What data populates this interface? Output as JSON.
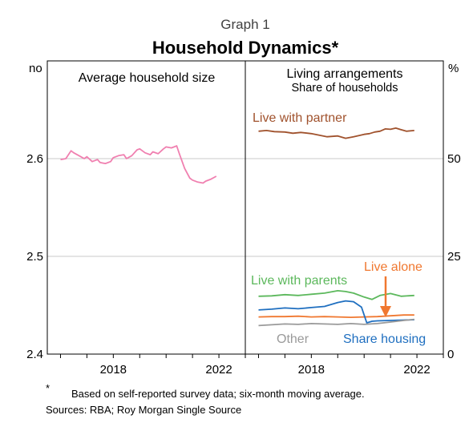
{
  "header": {
    "graph_label": "Graph 1",
    "title": "Household Dynamics*"
  },
  "footnotes": {
    "marker": "*",
    "note": "Based on self-reported survey data; six-month moving average.",
    "sources": "Sources: RBA; Roy Morgan Single Source"
  },
  "colors": {
    "live_with_partner": "#A0522D",
    "live_alone": "#F07830",
    "live_with_parents": "#5CB85C",
    "share_housing": "#1F6FC0",
    "other": "#9A9A9A",
    "household_size": "#F080B0",
    "gridline": "#C8C8C8",
    "arrow": "#F07830"
  },
  "chart_data": [
    {
      "type": "line",
      "panel": "left",
      "title": "Average household size",
      "ylabel": "no",
      "ylim": [
        2.4,
        2.7
      ],
      "yticks": [
        "2.6",
        "2.5",
        "2.4"
      ],
      "yticks_values": [
        2.6,
        2.5,
        2.4
      ],
      "xlim": [
        2015.5,
        2023.0
      ],
      "xticks": [
        "2018",
        "2022"
      ],
      "xticks_values": [
        2018,
        2022
      ],
      "grid": true,
      "series": [
        {
          "key": "household_size",
          "x": [
            2016.0,
            2016.2,
            2016.4,
            2016.5,
            2016.7,
            2016.9,
            2017.0,
            2017.2,
            2017.4,
            2017.5,
            2017.7,
            2017.9,
            2018.0,
            2018.2,
            2018.4,
            2018.5,
            2018.7,
            2018.9,
            2019.0,
            2019.2,
            2019.4,
            2019.5,
            2019.7,
            2019.9,
            2020.0,
            2020.2,
            2020.4,
            2020.5,
            2020.7,
            2020.9,
            2021.0,
            2021.2,
            2021.4,
            2021.5,
            2021.7,
            2021.9
          ],
          "values": [
            2.599,
            2.6,
            2.608,
            2.606,
            2.603,
            2.6,
            2.602,
            2.597,
            2.599,
            2.596,
            2.595,
            2.597,
            2.601,
            2.603,
            2.604,
            2.6,
            2.603,
            2.609,
            2.61,
            2.606,
            2.604,
            2.607,
            2.605,
            2.61,
            2.612,
            2.611,
            2.613,
            2.605,
            2.59,
            2.58,
            2.578,
            2.576,
            2.575,
            2.577,
            2.579,
            2.582
          ]
        }
      ]
    },
    {
      "type": "line",
      "panel": "right",
      "title": "Living arrangements",
      "subtitle": "Share of households",
      "ylabel": "%",
      "ylim": [
        0,
        75
      ],
      "yticks": [
        "50",
        "25",
        "0"
      ],
      "yticks_values": [
        50,
        25,
        0
      ],
      "xlim": [
        2015.5,
        2023.0
      ],
      "xticks": [
        "2018",
        "2022"
      ],
      "xticks_values": [
        2018,
        2022
      ],
      "grid": true,
      "series": [
        {
          "key": "live_with_partner",
          "name": "Live with partner",
          "x": [
            2016.0,
            2016.3,
            2016.6,
            2017.0,
            2017.3,
            2017.6,
            2018.0,
            2018.3,
            2018.6,
            2019.0,
            2019.3,
            2019.6,
            2020.0,
            2020.2,
            2020.4,
            2020.6,
            2020.8,
            2021.0,
            2021.2,
            2021.4,
            2021.6,
            2021.9
          ],
          "values": [
            57.0,
            57.2,
            56.9,
            56.8,
            56.5,
            56.7,
            56.4,
            56.0,
            55.6,
            55.8,
            55.2,
            55.6,
            56.2,
            56.4,
            56.8,
            57.0,
            57.6,
            57.5,
            57.8,
            57.4,
            57.0,
            57.2
          ]
        },
        {
          "key": "live_alone",
          "name": "Live alone",
          "x": [
            2016.0,
            2016.5,
            2017.0,
            2017.5,
            2018.0,
            2018.5,
            2019.0,
            2019.5,
            2020.0,
            2020.5,
            2021.0,
            2021.5,
            2021.9
          ],
          "values": [
            9.5,
            9.6,
            9.6,
            9.7,
            9.5,
            9.6,
            9.5,
            9.4,
            9.5,
            9.6,
            9.8,
            10.0,
            10.0
          ]
        },
        {
          "key": "live_with_parents",
          "name": "Live with parents",
          "x": [
            2016.0,
            2016.5,
            2017.0,
            2017.5,
            2018.0,
            2018.5,
            2019.0,
            2019.3,
            2019.6,
            2020.0,
            2020.3,
            2020.6,
            2021.0,
            2021.4,
            2021.9
          ],
          "values": [
            14.8,
            14.9,
            15.2,
            15.0,
            15.3,
            15.6,
            16.2,
            16.0,
            15.6,
            14.6,
            14.0,
            15.0,
            15.5,
            14.8,
            15.0
          ]
        },
        {
          "key": "share_housing",
          "name": "Share housing",
          "x": [
            2016.0,
            2016.5,
            2017.0,
            2017.5,
            2018.0,
            2018.5,
            2019.0,
            2019.3,
            2019.6,
            2019.9,
            2020.0,
            2020.1,
            2020.3,
            2020.5,
            2021.0,
            2021.5,
            2021.9
          ],
          "values": [
            11.3,
            11.5,
            11.8,
            11.6,
            11.9,
            12.2,
            13.2,
            13.6,
            13.4,
            12.0,
            10.0,
            8.0,
            8.4,
            8.5,
            8.6,
            8.7,
            8.8
          ]
        },
        {
          "key": "other",
          "name": "Other",
          "x": [
            2016.0,
            2016.5,
            2017.0,
            2017.5,
            2018.0,
            2018.5,
            2019.0,
            2019.5,
            2020.0,
            2020.5,
            2021.0,
            2021.5,
            2021.9
          ],
          "values": [
            7.3,
            7.5,
            7.7,
            7.6,
            7.8,
            7.7,
            7.6,
            7.8,
            7.6,
            7.8,
            8.2,
            8.6,
            8.9
          ]
        }
      ]
    }
  ]
}
